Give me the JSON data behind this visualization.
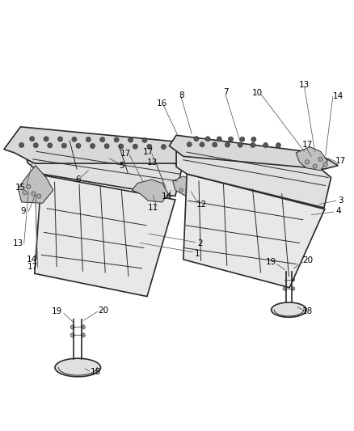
{
  "background_color": "#ffffff",
  "line_color": "#2a2a2a",
  "figure_width": 4.38,
  "figure_height": 5.33,
  "dpi": 100,
  "font_size": 7.5,
  "lw_main": 1.2,
  "lw_thin": 0.7,
  "lw_leader": 0.55,
  "seat_back_fill": "#e8e8e8",
  "cushion_fill": "#e0e0e0",
  "base_fill": "#d8d8d8",
  "bracket_fill": "#c0c0c0",
  "hardware_fill": "#aaaaaa",
  "hole_fill": "#555555"
}
